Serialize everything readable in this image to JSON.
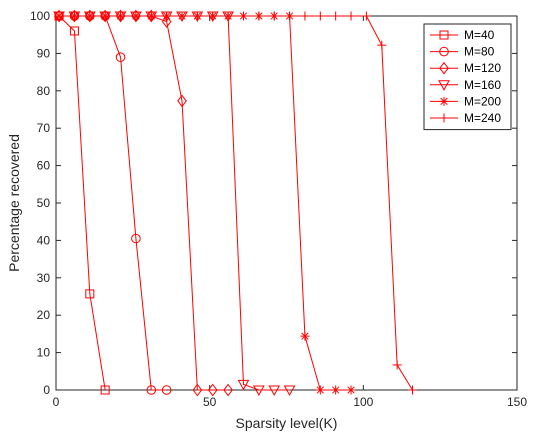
{
  "chart_data": {
    "type": "line",
    "title": "",
    "xlabel": "Sparsity level(K)",
    "ylabel": "Percentage recovered",
    "xlim": [
      0,
      150
    ],
    "ylim": [
      0,
      100
    ],
    "xticks": [
      0,
      50,
      100,
      150
    ],
    "yticks": [
      0,
      10,
      20,
      30,
      40,
      50,
      60,
      70,
      80,
      90,
      100
    ],
    "grid": false,
    "legend_position": "top-right",
    "color": "#ff0000",
    "series": [
      {
        "name": "M=40",
        "marker": "square",
        "x": [
          1,
          6,
          11,
          16
        ],
        "y": [
          100,
          96,
          25.7,
          0
        ]
      },
      {
        "name": "M=80",
        "marker": "circle",
        "x": [
          1,
          6,
          11,
          16,
          21,
          26,
          31,
          36
        ],
        "y": [
          100,
          100,
          100,
          100,
          89,
          40.5,
          0,
          0
        ]
      },
      {
        "name": "M=120",
        "marker": "diamond",
        "x": [
          1,
          6,
          11,
          16,
          21,
          26,
          31,
          36,
          41,
          46,
          51,
          56
        ],
        "y": [
          100,
          100,
          100,
          100,
          100,
          100,
          100,
          98.5,
          77.3,
          0,
          0,
          0
        ]
      },
      {
        "name": "M=160",
        "marker": "triangle-down",
        "x": [
          1,
          6,
          11,
          16,
          21,
          26,
          31,
          36,
          41,
          46,
          51,
          56,
          61,
          66,
          71,
          76
        ],
        "y": [
          100,
          100,
          100,
          100,
          100,
          100,
          100,
          100,
          100,
          100,
          100,
          100,
          1.5,
          0,
          0,
          0
        ]
      },
      {
        "name": "M=200",
        "marker": "star",
        "x": [
          1,
          6,
          11,
          16,
          21,
          26,
          31,
          36,
          41,
          46,
          51,
          56,
          61,
          66,
          71,
          76,
          81,
          86,
          91,
          96
        ],
        "y": [
          100,
          100,
          100,
          100,
          100,
          100,
          100,
          100,
          100,
          100,
          100,
          100,
          100,
          100,
          100,
          100,
          14.4,
          0,
          0,
          0
        ]
      },
      {
        "name": "M=240",
        "marker": "plus",
        "x": [
          1,
          6,
          11,
          16,
          21,
          26,
          31,
          36,
          41,
          46,
          51,
          56,
          61,
          66,
          71,
          76,
          81,
          86,
          91,
          96,
          101,
          106,
          111,
          116
        ],
        "y": [
          100,
          100,
          100,
          100,
          100,
          100,
          100,
          100,
          100,
          100,
          100,
          100,
          100,
          100,
          100,
          100,
          100,
          100,
          100,
          100,
          100,
          92.2,
          6.7,
          0
        ]
      }
    ]
  }
}
